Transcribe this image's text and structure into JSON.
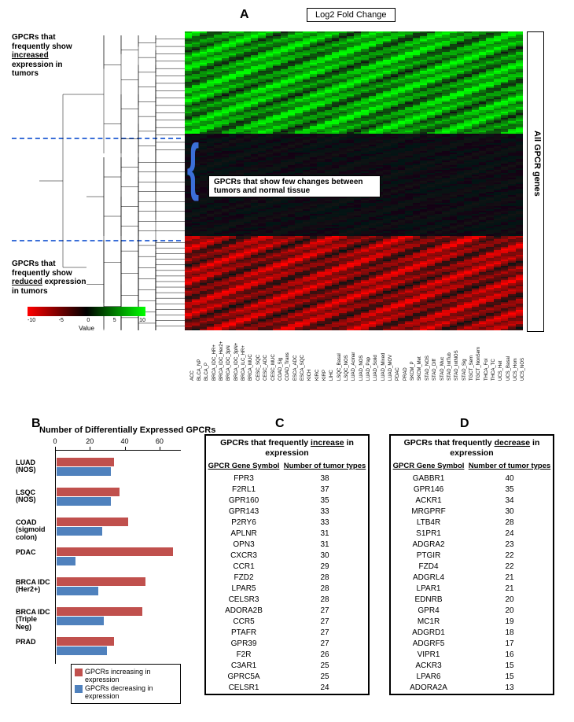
{
  "panelA": {
    "label": "A",
    "title": "Log2 Fold Change",
    "top_left_text": "GPCRs that frequently show <u>increased</u> expression in tumors",
    "bottom_left_text": "GPCRs that frequently show <u>reduced</u> expression in tumors",
    "middle_callout": "GPCRs that show few changes between tumors and normal tissue",
    "right_side_label": "All GPCR genes",
    "legend_title": "Value",
    "legend_min": -10,
    "legend_max": 10,
    "legend_ticks": [
      "-10",
      "-5",
      "0",
      "5",
      "10"
    ],
    "gradient": [
      "#ff0000",
      "#000000",
      "#00ff00"
    ],
    "x_categories": [
      "ACC",
      "BLCA_NP",
      "BLCA_P",
      "BRCA_IDC_HR+",
      "BRCA_IDC_Her2+",
      "BRCA_IDC_3pN",
      "BRCA_IDC_3pN+",
      "BRCA_ILC_HR+",
      "BRCA_MUC",
      "CESC_SQC",
      "CESC_ADC",
      "CESC_MUC",
      "COAD_Sig",
      "COAD_Trans",
      "ESCA_ADC",
      "ESCA_SQC",
      "KICH",
      "KIRC",
      "KIRP",
      "LIHC",
      "LSQC_Basal",
      "LSQC_NOS",
      "LUAD_Acinar",
      "LUAD_NOS",
      "LUAD_Pap",
      "LUAD_Solid",
      "LUAD_Mixed",
      "LUAD_MOV",
      "PDAC",
      "PRAD",
      "SKCM_P",
      "SKCM_Met",
      "STAD_NOS",
      "STAD_Diff",
      "STAD_Muc",
      "STAD_IntTub",
      "STAD_IntNOS",
      "STAD_Sig",
      "TGCT_Sem",
      "TGCT_NonSem",
      "THCA_Fol",
      "THCA_TC",
      "UCS_Het",
      "UCS_Basal",
      "UCS_Hom",
      "UCS_NOS"
    ]
  },
  "panelB": {
    "label": "B",
    "title": "Number of Differentially Expressed GPCRs",
    "x_ticks": [
      0,
      20,
      40,
      60
    ],
    "x_max": 70,
    "categories": [
      "LUAD (NOS)",
      "LSQC (NOS)",
      "COAD (sigmoid colon)",
      "PDAC",
      "BRCA IDC (Her2+)",
      "BRCA IDC (Triple Neg)",
      "PRAD"
    ],
    "series": {
      "red": {
        "label": "GPCRs increasing in expression",
        "color": "#c0504d",
        "values": [
          33,
          36,
          41,
          67,
          51,
          49,
          33
        ]
      },
      "blue": {
        "label": "GPCRs decreasing in expression",
        "color": "#4f81bd",
        "values": [
          31,
          31,
          26,
          11,
          24,
          27,
          29
        ]
      }
    }
  },
  "panelC": {
    "label": "C",
    "title": "GPCRs that frequently <u>increase</u> in expression",
    "col1": "GPCR Gene Symbol",
    "col2": "Number of tumor types",
    "rows": [
      [
        "FPR3",
        "38"
      ],
      [
        "F2RL1",
        "37"
      ],
      [
        "GPR160",
        "35"
      ],
      [
        "GPR143",
        "33"
      ],
      [
        "P2RY6",
        "33"
      ],
      [
        "APLNR",
        "31"
      ],
      [
        "OPN3",
        "31"
      ],
      [
        "CXCR3",
        "30"
      ],
      [
        "CCR1",
        "29"
      ],
      [
        "FZD2",
        "28"
      ],
      [
        "LPAR5",
        "28"
      ],
      [
        "CELSR3",
        "28"
      ],
      [
        "ADORA2B",
        "27"
      ],
      [
        "CCR5",
        "27"
      ],
      [
        "PTAFR",
        "27"
      ],
      [
        "GPR39",
        "27"
      ],
      [
        "F2R",
        "26"
      ],
      [
        "C3AR1",
        "25"
      ],
      [
        "GPRC5A",
        "25"
      ],
      [
        "CELSR1",
        "24"
      ]
    ]
  },
  "panelD": {
    "label": "D",
    "title": "GPCRs that frequently <u>decrease</u> in expression",
    "col1": "GPCR Gene Symbol",
    "col2": "Number of tumor types",
    "rows": [
      [
        "GABBR1",
        "40"
      ],
      [
        "GPR146",
        "35"
      ],
      [
        "ACKR1",
        "34"
      ],
      [
        "MRGPRF",
        "30"
      ],
      [
        "LTB4R",
        "28"
      ],
      [
        "S1PR1",
        "24"
      ],
      [
        "ADGRA2",
        "23"
      ],
      [
        "PTGIR",
        "22"
      ],
      [
        "FZD4",
        "22"
      ],
      [
        "ADGRL4",
        "21"
      ],
      [
        "LPAR1",
        "21"
      ],
      [
        "EDNRB",
        "20"
      ],
      [
        "GPR4",
        "20"
      ],
      [
        "MC1R",
        "19"
      ],
      [
        "ADGRD1",
        "18"
      ],
      [
        "ADGRF5",
        "17"
      ],
      [
        "VIPR1",
        "16"
      ],
      [
        "ACKR3",
        "15"
      ],
      [
        "LPAR6",
        "15"
      ],
      [
        "ADORA2A",
        "13"
      ]
    ]
  }
}
